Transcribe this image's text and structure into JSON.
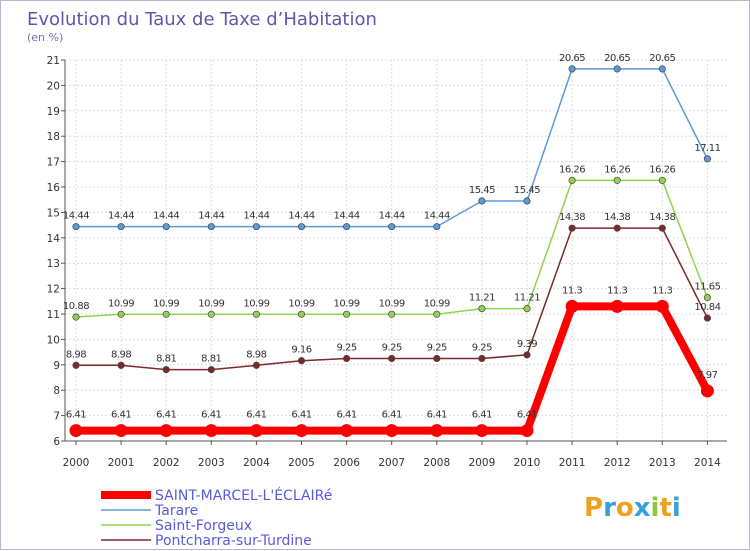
{
  "chart_data": {
    "type": "line",
    "title": "Evolution du Taux de Taxe d’Habitation",
    "subtitle": "(en %)",
    "x": [
      "2000",
      "2001",
      "2002",
      "2003",
      "2004",
      "2005",
      "2006",
      "2007",
      "2008",
      "2009",
      "2010",
      "2011",
      "2012",
      "2013",
      "2014"
    ],
    "ylim": [
      6,
      21
    ],
    "yticks": [
      6,
      7,
      8,
      9,
      10,
      11,
      12,
      13,
      14,
      15,
      16,
      17,
      18,
      19,
      20,
      21
    ],
    "grid": true,
    "legend_position": "bottom-left",
    "series": [
      {
        "name": "Tarare",
        "color": "#5b9bd5",
        "labels": [
          "14.44",
          "14.44",
          "14.44",
          "14.44",
          "14.44",
          "14.44",
          "14.44",
          "14.44",
          "14.44",
          "15.45",
          "15.45",
          "20.65",
          "20.65",
          "20.65",
          "17.11"
        ],
        "values": [
          14.44,
          14.44,
          14.44,
          14.44,
          14.44,
          14.44,
          14.44,
          14.44,
          14.44,
          15.45,
          15.45,
          20.65,
          20.65,
          20.65,
          17.11
        ]
      },
      {
        "name": "Saint-Forgeux",
        "color": "#8fd450",
        "labels": [
          "10.88",
          "10.99",
          "10.99",
          "10.99",
          "10.99",
          "10.99",
          "10.99",
          "10.99",
          "10.99",
          "11.21",
          "11.21",
          "16.26",
          "16.26",
          "16.26",
          "11.65"
        ],
        "values": [
          10.88,
          10.99,
          10.99,
          10.99,
          10.99,
          10.99,
          10.99,
          10.99,
          10.99,
          11.21,
          11.21,
          16.26,
          16.26,
          16.26,
          11.65
        ]
      },
      {
        "name": "Pontcharra-sur-Turdine",
        "color": "#7a2a2a",
        "labels": [
          "8.98",
          "8.98",
          "8.81",
          "8.81",
          "8.98",
          "9.16",
          "9.25",
          "9.25",
          "9.25",
          "9.25",
          "9.39",
          "14.38",
          "14.38",
          "14.38",
          "10.84"
        ],
        "values": [
          8.98,
          8.98,
          8.81,
          8.81,
          8.98,
          9.16,
          9.25,
          9.25,
          9.25,
          9.25,
          9.39,
          14.38,
          14.38,
          14.38,
          10.84
        ]
      },
      {
        "name": "SAINT-MARCEL-L'ÉCLAIRé",
        "color": "#ff0000",
        "labels": [
          "6.41",
          "6.41",
          "6.41",
          "6.41",
          "6.41",
          "6.41",
          "6.41",
          "6.41",
          "6.41",
          "6.41",
          "6.41",
          "11.3",
          "11.3",
          "11.3",
          "7.97"
        ],
        "values": [
          6.41,
          6.41,
          6.41,
          6.41,
          6.41,
          6.41,
          6.41,
          6.41,
          6.41,
          6.41,
          6.41,
          11.3,
          11.3,
          11.3,
          7.97
        ]
      }
    ],
    "legend": [
      {
        "name": "SAINT-MARCEL-L'ÉCLAIRé",
        "color": "#ff0000"
      },
      {
        "name": "Tarare",
        "color": "#5b9bd5"
      },
      {
        "name": "Saint-Forgeux",
        "color": "#8fd450"
      },
      {
        "name": "Pontcharra-sur-Turdine",
        "color": "#7a2a2a"
      }
    ]
  },
  "logo": {
    "letters": [
      "P",
      "r",
      "o",
      "x",
      "i",
      "t",
      "i"
    ],
    "colors": [
      "#f0a020",
      "#3aa0dc",
      "#f0a020",
      "#3aa0dc",
      "#8cc63f",
      "#f0a020",
      "#3aa0dc"
    ]
  }
}
